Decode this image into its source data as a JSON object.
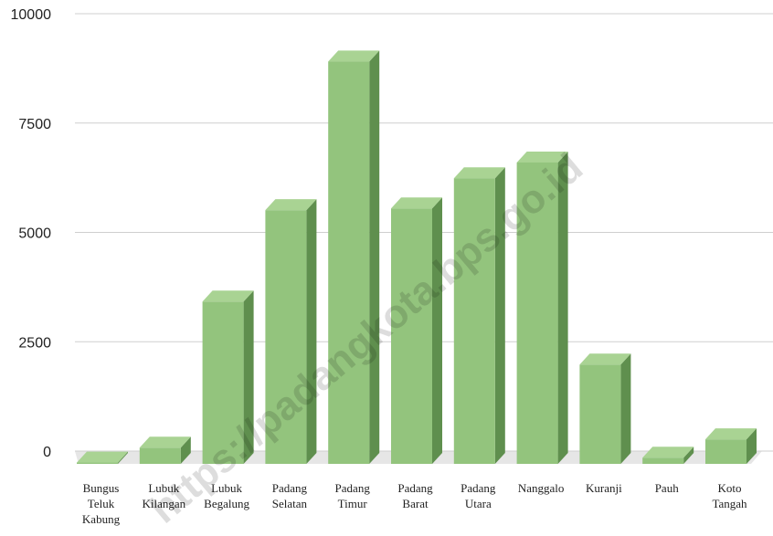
{
  "chart_data": {
    "type": "bar",
    "title": "",
    "xlabel": "",
    "ylabel": "",
    "ylim": [
      0,
      10000
    ],
    "yticks": [
      "10000",
      "7500",
      "5000",
      "2500",
      "0"
    ],
    "grid": true,
    "style": "3d-column",
    "categories": [
      [
        "Bungus",
        "Teluk",
        "Kabung"
      ],
      [
        "Lubuk",
        "Kilangan"
      ],
      [
        "Lubuk",
        "Begalung"
      ],
      [
        "Padang",
        "Selatan"
      ],
      [
        "Padang",
        "Timur"
      ],
      [
        "Padang",
        "Barat"
      ],
      [
        "Padang",
        "Utara"
      ],
      [
        "Nanggalo"
      ],
      [
        "Kuranji"
      ],
      [
        "Pauh"
      ],
      [
        "Koto",
        "Tangah"
      ]
    ],
    "values": [
      30,
      370,
      3710,
      5800,
      9200,
      5840,
      6530,
      6890,
      2270,
      140,
      560
    ],
    "colors": {
      "bar_front": "#93c47d",
      "bar_top": "#a9d393",
      "bar_side": "#5f8f4e",
      "grid": "#cfcfcf",
      "floor": "#e6e6e6"
    }
  },
  "watermark": "https://padangkota.bps.go.id"
}
